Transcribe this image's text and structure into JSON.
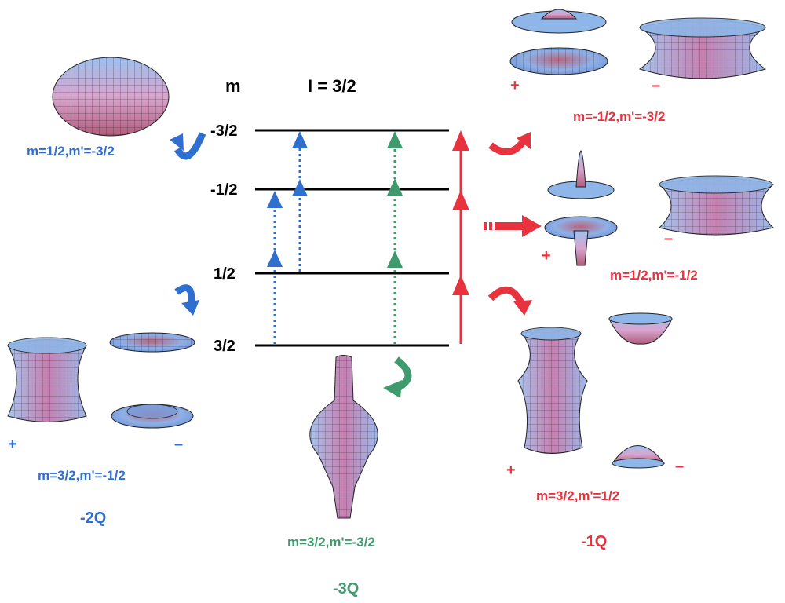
{
  "header": {
    "m_label": "m",
    "spin_label": "I = 3/2"
  },
  "levels": [
    "-3/2",
    "-1/2",
    "1/2",
    "3/2"
  ],
  "transitions": {
    "blue_top": "m=1/2,m'=-3/2",
    "blue_bottom": "m=3/2,m'=-1/2",
    "blue_order": "-2Q",
    "green": "m=3/2,m'=-3/2",
    "green_order": "-3Q",
    "red_top": "m=-1/2,m'=-3/2",
    "red_mid": "m=1/2,m'=-1/2",
    "red_bottom": "m=3/2,m'=1/2",
    "red_order": "-1Q"
  },
  "signs": {
    "plus": "+",
    "minus": "–"
  },
  "colors": {
    "blue": "#2f6fd0",
    "red": "#e8333f",
    "green": "#3f9a6e",
    "surface_top": "#8fb6e8",
    "surface_mid": "#d59bc0",
    "surface_dark": "#b0607a"
  }
}
